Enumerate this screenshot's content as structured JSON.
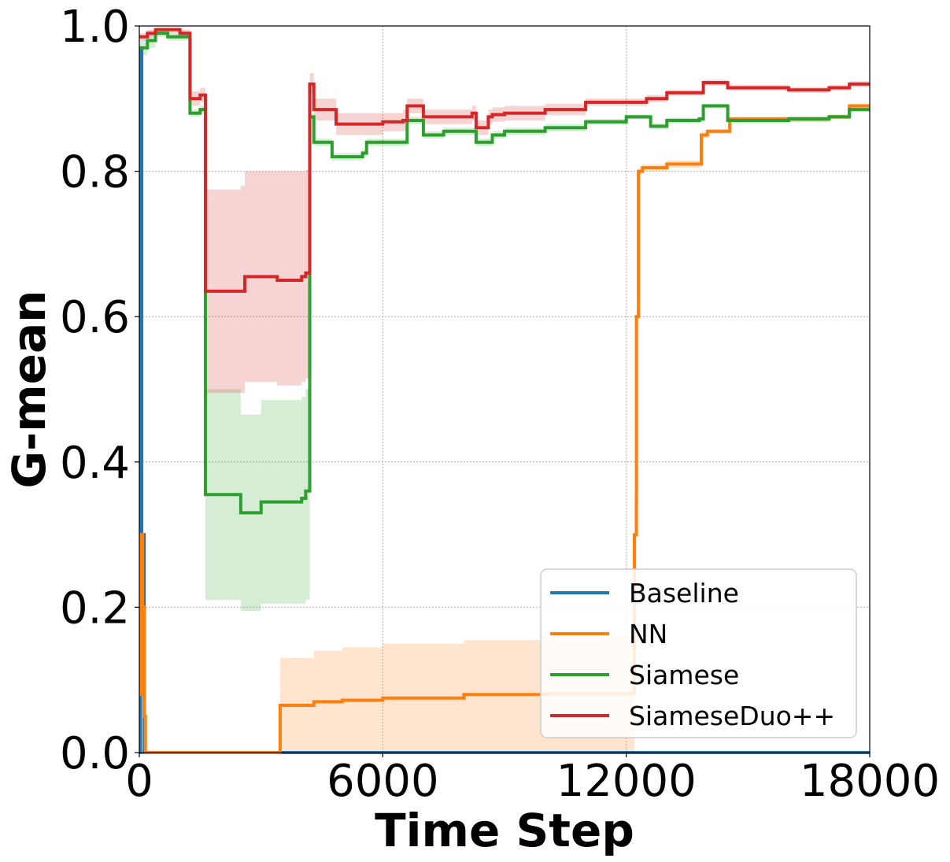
{
  "chart_data": {
    "type": "line",
    "title": "",
    "xlabel": "Time Step",
    "ylabel": "G-mean",
    "xlim": [
      0,
      18000
    ],
    "ylim": [
      0,
      1
    ],
    "xticks": [
      "0",
      "6000",
      "12000",
      "18000"
    ],
    "yticks": [
      "0.0",
      "0.2",
      "0.4",
      "0.6",
      "0.8",
      "1.0"
    ],
    "grid": true,
    "legend_position": "lower-right",
    "series": [
      {
        "name": "Baseline",
        "color": "#1f77b4",
        "x": [
          0,
          30,
          60,
          120,
          18000
        ],
        "y": [
          0.0,
          0.97,
          0.3,
          0.0,
          0.0
        ]
      },
      {
        "name": "NN",
        "color": "#ff7f0e",
        "x": [
          0,
          40,
          80,
          120,
          150,
          3450,
          3470,
          4300,
          5000,
          6000,
          8000,
          10000,
          12100,
          12200,
          12250,
          12300,
          12400,
          12500,
          13000,
          13800,
          13850,
          14000,
          14500,
          14550,
          15000,
          16000,
          17000,
          17500,
          18000
        ],
        "y": [
          0.08,
          0.3,
          0.2,
          0.05,
          0.0,
          0.0,
          0.065,
          0.07,
          0.072,
          0.075,
          0.08,
          0.081,
          0.082,
          0.3,
          0.6,
          0.8,
          0.805,
          0.805,
          0.81,
          0.81,
          0.85,
          0.855,
          0.855,
          0.872,
          0.872,
          0.872,
          0.875,
          0.89,
          0.89
        ],
        "band_upper": [
          0.1,
          0.3,
          0.2,
          0.06,
          0.0,
          0.0,
          0.13,
          0.14,
          0.145,
          0.15,
          0.155,
          0.16,
          0.16,
          0.35,
          0.61,
          0.805,
          0.81,
          0.81,
          0.815,
          0.815,
          0.855,
          0.858,
          0.858,
          0.875,
          0.875,
          0.875,
          0.878,
          0.893,
          0.893
        ],
        "band_lower": [
          0.0,
          0.2,
          0.1,
          0.0,
          0.0,
          0.0,
          0.0,
          0.0,
          0.0,
          0.0,
          0.0,
          0.0,
          0.0,
          0.25,
          0.59,
          0.795,
          0.8,
          0.8,
          0.805,
          0.805,
          0.845,
          0.852,
          0.852,
          0.868,
          0.868,
          0.868,
          0.872,
          0.887,
          0.887
        ]
      },
      {
        "name": "Siamese",
        "color": "#2ca02c",
        "x": [
          0,
          200,
          400,
          700,
          1000,
          1200,
          1250,
          1500,
          1600,
          1630,
          2200,
          2500,
          2600,
          3000,
          3400,
          4000,
          4100,
          4200,
          4300,
          4700,
          4750,
          5500,
          5600,
          6000,
          6500,
          6600,
          7000,
          7500,
          8200,
          8300,
          8600,
          8700,
          9000,
          10000,
          11000,
          12000,
          12500,
          12600,
          13000,
          13800,
          13900,
          14400,
          14500,
          15000,
          16000,
          17000,
          17500,
          18000
        ],
        "y": [
          0.97,
          0.98,
          0.99,
          0.985,
          0.985,
          0.985,
          0.88,
          0.885,
          0.885,
          0.355,
          0.355,
          0.33,
          0.33,
          0.345,
          0.345,
          0.35,
          0.36,
          0.875,
          0.84,
          0.84,
          0.82,
          0.825,
          0.84,
          0.84,
          0.84,
          0.87,
          0.85,
          0.855,
          0.855,
          0.84,
          0.84,
          0.85,
          0.855,
          0.86,
          0.868,
          0.875,
          0.875,
          0.862,
          0.87,
          0.872,
          0.89,
          0.89,
          0.87,
          0.87,
          0.872,
          0.875,
          0.885,
          0.885
        ],
        "band_upper": [
          0.98,
          0.99,
          0.995,
          0.99,
          0.99,
          0.99,
          0.885,
          0.89,
          0.89,
          0.5,
          0.5,
          0.465,
          0.465,
          0.485,
          0.485,
          0.49,
          0.5,
          0.88,
          0.845,
          0.845,
          0.825,
          0.83,
          0.845,
          0.845,
          0.845,
          0.875,
          0.855,
          0.86,
          0.86,
          0.845,
          0.845,
          0.855,
          0.86,
          0.865,
          0.872,
          0.878,
          0.878,
          0.866,
          0.874,
          0.876,
          0.893,
          0.893,
          0.874,
          0.874,
          0.876,
          0.878,
          0.888,
          0.888
        ],
        "band_lower": [
          0.96,
          0.97,
          0.985,
          0.98,
          0.98,
          0.98,
          0.875,
          0.88,
          0.88,
          0.21,
          0.21,
          0.195,
          0.195,
          0.205,
          0.205,
          0.205,
          0.21,
          0.87,
          0.835,
          0.835,
          0.815,
          0.82,
          0.835,
          0.835,
          0.835,
          0.865,
          0.845,
          0.85,
          0.85,
          0.835,
          0.835,
          0.845,
          0.85,
          0.855,
          0.864,
          0.872,
          0.872,
          0.858,
          0.866,
          0.868,
          0.887,
          0.887,
          0.866,
          0.866,
          0.868,
          0.872,
          0.882,
          0.882
        ]
      },
      {
        "name": "SiameseDuo++",
        "color": "#d62728",
        "x": [
          0,
          200,
          400,
          700,
          1000,
          1200,
          1250,
          1500,
          1600,
          1630,
          2200,
          2500,
          2600,
          3000,
          3400,
          4000,
          4100,
          4200,
          4300,
          4800,
          4850,
          5500,
          6000,
          6500,
          6600,
          6900,
          7000,
          7500,
          8200,
          8300,
          8600,
          8700,
          9000,
          10000,
          11000,
          12000,
          12500,
          13000,
          13800,
          13900,
          14500,
          15000,
          16000,
          17000,
          17500,
          18000
        ],
        "y": [
          0.985,
          0.99,
          0.995,
          0.995,
          0.99,
          0.99,
          0.9,
          0.905,
          0.905,
          0.635,
          0.635,
          0.635,
          0.655,
          0.655,
          0.65,
          0.655,
          0.66,
          0.92,
          0.885,
          0.885,
          0.865,
          0.865,
          0.868,
          0.87,
          0.89,
          0.89,
          0.875,
          0.875,
          0.88,
          0.86,
          0.875,
          0.878,
          0.88,
          0.885,
          0.895,
          0.895,
          0.9,
          0.908,
          0.908,
          0.922,
          0.915,
          0.915,
          0.912,
          0.915,
          0.92,
          0.92
        ],
        "band_upper": [
          0.99,
          0.995,
          0.998,
          0.998,
          0.995,
          0.995,
          0.91,
          0.915,
          0.915,
          0.775,
          0.775,
          0.78,
          0.8,
          0.8,
          0.8,
          0.8,
          0.802,
          0.935,
          0.9,
          0.9,
          0.88,
          0.88,
          0.88,
          0.885,
          0.9,
          0.9,
          0.885,
          0.885,
          0.89,
          0.87,
          0.885,
          0.888,
          0.89,
          0.893,
          0.9,
          0.9,
          0.905,
          0.912,
          0.912,
          0.926,
          0.919,
          0.919,
          0.916,
          0.919,
          0.924,
          0.924
        ],
        "band_lower": [
          0.98,
          0.985,
          0.99,
          0.99,
          0.985,
          0.985,
          0.89,
          0.895,
          0.895,
          0.495,
          0.495,
          0.495,
          0.51,
          0.51,
          0.505,
          0.51,
          0.515,
          0.905,
          0.87,
          0.87,
          0.85,
          0.85,
          0.855,
          0.855,
          0.88,
          0.88,
          0.865,
          0.865,
          0.87,
          0.85,
          0.865,
          0.868,
          0.87,
          0.877,
          0.89,
          0.89,
          0.895,
          0.904,
          0.904,
          0.918,
          0.911,
          0.911,
          0.908,
          0.911,
          0.916,
          0.916
        ]
      }
    ]
  }
}
